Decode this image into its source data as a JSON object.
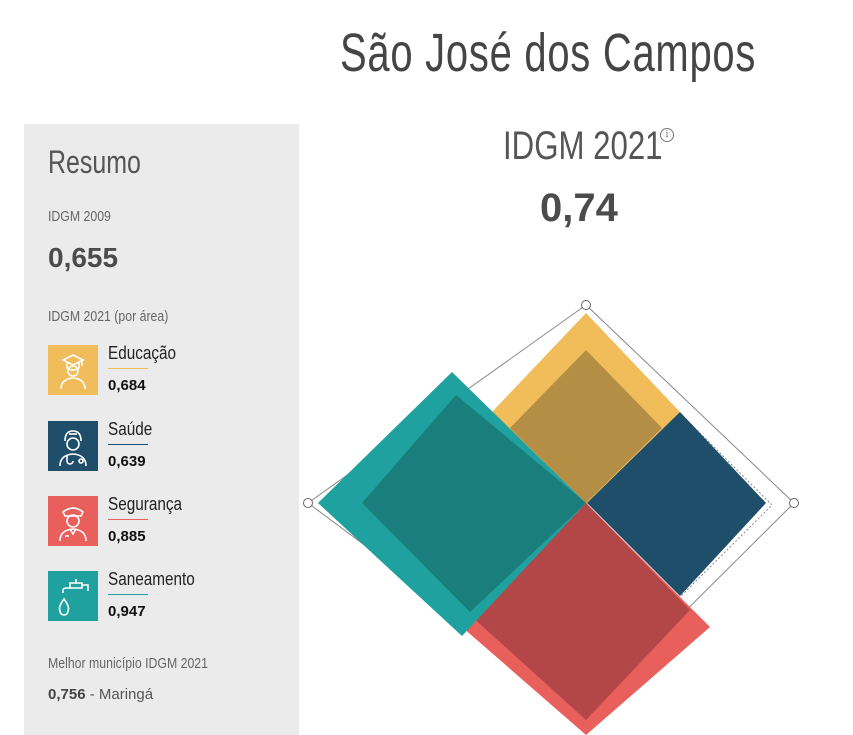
{
  "header": {
    "city": "São José dos Campos"
  },
  "summary": {
    "title": "Resumo",
    "idgm2009_label": "IDGM 2009",
    "idgm2009_value": "0,655",
    "by_area_label": "IDGM 2021 (por área)",
    "areas": [
      {
        "name": "Educação",
        "value": "0,684",
        "color": "#f0bd5a",
        "icon": "graduate-icon"
      },
      {
        "name": "Saúde",
        "value": "0,639",
        "color": "#1f4e6b",
        "icon": "doctor-icon"
      },
      {
        "name": "Segurança",
        "value": "0,885",
        "color": "#e95f5c",
        "icon": "police-officer-icon"
      },
      {
        "name": "Saneamento",
        "value": "0,947",
        "color": "#1fa1a0",
        "icon": "faucet-icon"
      }
    ],
    "best_label": "Melhor município IDGM 2021",
    "best_value": "0,756",
    "best_name": " - Maringá"
  },
  "main": {
    "idgm_title": "IDGM 2021",
    "idgm_value": "0,74",
    "info_icon": "info-icon"
  }
}
